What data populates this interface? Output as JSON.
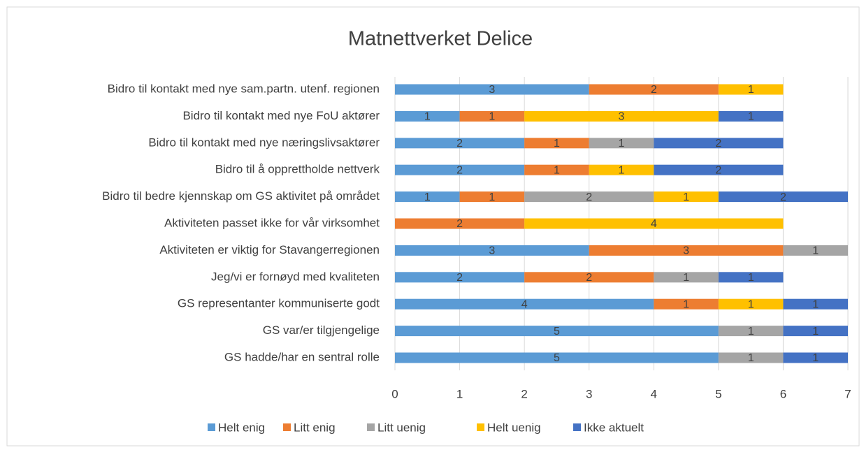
{
  "chart_data": {
    "type": "stacked_barh",
    "title": "Matnettverket Delice",
    "categories": [
      "Bidro til kontakt med nye sam.partn. utenf. regionen",
      "Bidro til kontakt med nye FoU aktører",
      "Bidro til kontakt med nye næringslivsaktører",
      "Bidro til å opprettholde nettverk",
      "Bidro til bedre kjennskap om GS aktivitet på området",
      "Aktiviteten passet ikke for vår virksomhet",
      "Aktiviteten er viktig for Stavangerregionen",
      "Jeg/vi er fornøyd med kvaliteten",
      "GS representanter kommuniserte godt",
      "GS var/er tilgjengelige",
      "GS hadde/har en sentral rolle"
    ],
    "series": [
      {
        "name": "Helt enig",
        "color": "#5b9bd5",
        "values": [
          3,
          1,
          2,
          2,
          1,
          null,
          3,
          2,
          4,
          5,
          5
        ]
      },
      {
        "name": "Litt enig",
        "color": "#ed7d31",
        "values": [
          2,
          1,
          1,
          1,
          1,
          2,
          3,
          2,
          1,
          null,
          null
        ]
      },
      {
        "name": "Litt uenig",
        "color": "#a5a5a5",
        "values": [
          null,
          null,
          1,
          null,
          2,
          null,
          1,
          1,
          null,
          1,
          1
        ]
      },
      {
        "name": "Helt uenig",
        "color": "#ffc000",
        "values": [
          1,
          3,
          null,
          1,
          1,
          4,
          null,
          null,
          1,
          null,
          null
        ]
      },
      {
        "name": "Ikke aktuelt",
        "color": "#4472c4",
        "values": [
          null,
          1,
          2,
          2,
          2,
          null,
          null,
          1,
          1,
          1,
          1
        ]
      }
    ],
    "xlim": [
      0,
      7
    ],
    "xticks": [
      0,
      1,
      2,
      3,
      4,
      5,
      6,
      7
    ],
    "grid": true,
    "legend": "bottom"
  }
}
